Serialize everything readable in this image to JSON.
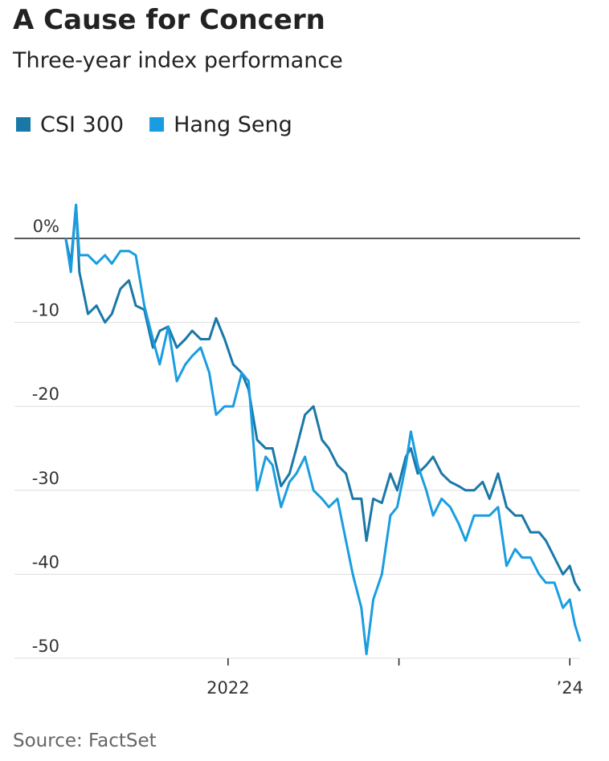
{
  "chart_data": {
    "type": "line",
    "title": "A Cause for Concern",
    "subtitle": "Three-year index performance",
    "source": "Source: FactSet",
    "x": [
      2021.05,
      2021.08,
      2021.11,
      2021.13,
      2021.18,
      2021.23,
      2021.28,
      2021.32,
      2021.37,
      2021.42,
      2021.46,
      2021.51,
      2021.56,
      2021.6,
      2021.65,
      2021.7,
      2021.75,
      2021.79,
      2021.84,
      2021.89,
      2021.93,
      2021.98,
      2022.03,
      2022.08,
      2022.12,
      2022.17,
      2022.22,
      2022.26,
      2022.31,
      2022.36,
      2022.4,
      2022.45,
      2022.5,
      2022.55,
      2022.59,
      2022.64,
      2022.69,
      2022.73,
      2022.78,
      2022.81,
      2022.85,
      2022.9,
      2022.95,
      2022.99,
      2023.04,
      2023.07,
      2023.11,
      2023.16,
      2023.2,
      2023.25,
      2023.3,
      2023.35,
      2023.39,
      2023.44,
      2023.49,
      2023.53,
      2023.58,
      2023.63,
      2023.68,
      2023.72,
      2023.77,
      2023.82,
      2023.86,
      2023.91,
      2023.96,
      2024.0,
      2024.03,
      2024.06
    ],
    "series": [
      {
        "name": "CSI 300",
        "color": "#1a78a8",
        "values": [
          0,
          -3,
          4,
          -4,
          -9,
          -8,
          -10,
          -9,
          -6,
          -5,
          -8,
          -8.5,
          -13,
          -11,
          -10.5,
          -13,
          -12,
          -11,
          -12,
          -12,
          -9.5,
          -12,
          -15,
          -16,
          -18,
          -24,
          -25,
          -25,
          -29.5,
          -28,
          -25,
          -21,
          -20,
          -24,
          -25,
          -27,
          -28,
          -31,
          -31,
          -36,
          -31,
          -31.5,
          -28,
          -30,
          -26,
          -25,
          -28,
          -27,
          -26,
          -28,
          -29,
          -29.5,
          -30,
          -30,
          -29,
          -31,
          -28,
          -32,
          -33,
          -33,
          -35,
          -35,
          -36,
          -38,
          -40,
          -39,
          -41,
          -42
        ]
      },
      {
        "name": "Hang Seng",
        "color": "#1a9de0",
        "values": [
          0,
          -4,
          4,
          -2,
          -2,
          -3,
          -2,
          -3,
          -1.5,
          -1.5,
          -2,
          -8,
          -12,
          -15,
          -10.5,
          -17,
          -15,
          -14,
          -13,
          -16,
          -21,
          -20,
          -20,
          -16,
          -17,
          -30,
          -26,
          -27,
          -32,
          -29,
          -28,
          -26,
          -30,
          -31,
          -32,
          -31,
          -36,
          -40,
          -44,
          -49.5,
          -43,
          -40,
          -33,
          -32,
          -27,
          -23,
          -27,
          -30,
          -33,
          -31,
          -32,
          -34,
          -36,
          -33,
          -33,
          -33,
          -32,
          -39,
          -37,
          -38,
          -38,
          -40,
          -41,
          -41,
          -44,
          -43,
          -46,
          -48
        ]
      }
    ],
    "xlim": [
      2020.75,
      2024.06
    ],
    "xticks": [
      2022,
      {
        "value": 2023,
        "label": null
      },
      {
        "value": 2024,
        "label": "’24"
      }
    ],
    "ylim": [
      -50,
      6
    ],
    "yticks": [
      {
        "value": 0,
        "label": "0%"
      },
      -10,
      -20,
      -30,
      -40,
      -50
    ],
    "grid": true
  }
}
